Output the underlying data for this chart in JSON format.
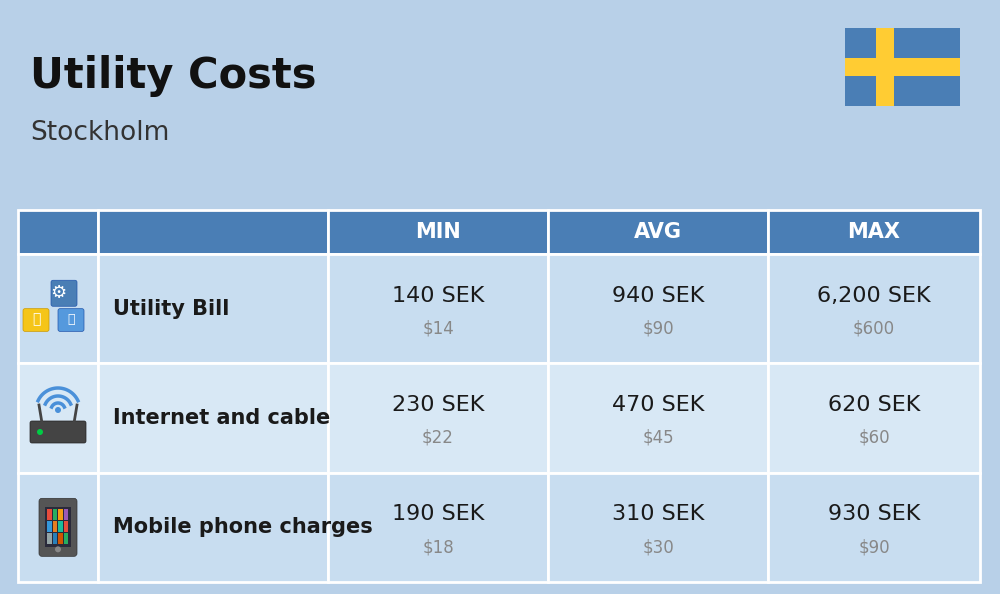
{
  "title": "Utility Costs",
  "subtitle": "Stockholm",
  "background_color": "#b8d0e8",
  "header_bg_color": "#4a7eb5",
  "header_text_color": "#ffffff",
  "row_bg_color_1": "#c8ddf0",
  "row_bg_color_2": "#d8e8f5",
  "table_line_color": "#ffffff",
  "rows": [
    {
      "label": "Utility Bill",
      "min_sek": "140 SEK",
      "min_usd": "$14",
      "avg_sek": "940 SEK",
      "avg_usd": "$90",
      "max_sek": "6,200 SEK",
      "max_usd": "$600"
    },
    {
      "label": "Internet and cable",
      "min_sek": "230 SEK",
      "min_usd": "$22",
      "avg_sek": "470 SEK",
      "avg_usd": "$45",
      "max_sek": "620 SEK",
      "max_usd": "$60"
    },
    {
      "label": "Mobile phone charges",
      "min_sek": "190 SEK",
      "min_usd": "$18",
      "avg_sek": "310 SEK",
      "avg_usd": "$30",
      "max_sek": "930 SEK",
      "max_usd": "$90"
    }
  ],
  "cell_text_color": "#1a1a1a",
  "usd_text_color": "#888888",
  "title_fontsize": 30,
  "subtitle_fontsize": 19,
  "header_fontsize": 15,
  "label_fontsize": 15,
  "value_fontsize": 16,
  "usd_fontsize": 12,
  "flag_blue": "#4a7eb5",
  "flag_yellow": "#FFCC33"
}
